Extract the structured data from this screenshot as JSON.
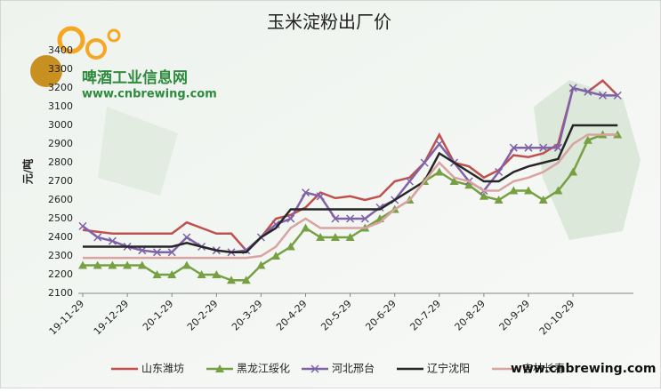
{
  "chart_data": {
    "type": "line",
    "title": "玉米淀粉出厂价",
    "y_label": "元/吨",
    "annotations": [
      "啤酒工业信息网",
      "www.cnbrewing.com",
      "www.cnbrewing.com"
    ],
    "categories": [
      "19-11-29",
      null,
      null,
      "19-12-29",
      null,
      null,
      "20-1-29",
      null,
      null,
      "20-2-29",
      null,
      null,
      "20-3-29",
      null,
      null,
      "20-4-29",
      null,
      null,
      "20-5-29",
      null,
      null,
      "20-6-29",
      null,
      null,
      "20-7-29",
      null,
      null,
      "20-8-29",
      null,
      null,
      "20-9-29",
      null,
      null,
      "20-10-29",
      null,
      null,
      null
    ],
    "series": [
      {
        "name": "山东潍坊",
        "color": "#c0504d",
        "marker": "none",
        "values": [
          2440,
          2430,
          2420,
          2420,
          2420,
          2420,
          2420,
          2480,
          2450,
          2420,
          2420,
          2330,
          2400,
          2500,
          2520,
          2560,
          2640,
          2610,
          2620,
          2600,
          2620,
          2700,
          2720,
          2800,
          2950,
          2800,
          2780,
          2720,
          2760,
          2840,
          2830,
          2850,
          2900,
          3200,
          3180,
          3240,
          3160
        ]
      },
      {
        "name": "黑龙江绥化",
        "color": "#77a043",
        "marker": "triangle",
        "values": [
          2250,
          2250,
          2250,
          2250,
          2250,
          2200,
          2200,
          2250,
          2200,
          2200,
          2170,
          2170,
          2250,
          2300,
          2350,
          2450,
          2400,
          2400,
          2400,
          2450,
          2500,
          2550,
          2600,
          2700,
          2750,
          2700,
          2680,
          2620,
          2600,
          2650,
          2650,
          2600,
          2650,
          2750,
          2920,
          2950,
          2950
        ]
      },
      {
        "name": "河北邢台",
        "color": "#7f62a8",
        "marker": "x",
        "values": [
          2460,
          2400,
          2380,
          2350,
          2330,
          2320,
          2320,
          2400,
          2350,
          2330,
          2320,
          2330,
          2400,
          2470,
          2500,
          2640,
          2620,
          2500,
          2500,
          2500,
          2560,
          2600,
          2700,
          2800,
          2900,
          2800,
          2700,
          2650,
          2750,
          2880,
          2880,
          2880,
          2880,
          3200,
          3180,
          3160,
          3160
        ]
      },
      {
        "name": "辽宁沈阳",
        "color": "#262626",
        "marker": "none",
        "values": [
          2350,
          2350,
          2350,
          2350,
          2350,
          2350,
          2350,
          2370,
          2350,
          2330,
          2320,
          2320,
          2400,
          2450,
          2550,
          2550,
          2550,
          2550,
          2550,
          2550,
          2550,
          2600,
          2650,
          2700,
          2850,
          2800,
          2750,
          2700,
          2700,
          2750,
          2780,
          2800,
          2820,
          3000,
          3000,
          3000,
          3000
        ]
      },
      {
        "name": "吉林长春",
        "color": "#d9a3a1",
        "marker": "none",
        "values": [
          2290,
          2290,
          2290,
          2290,
          2290,
          2290,
          2290,
          2290,
          2290,
          2290,
          2290,
          2290,
          2300,
          2350,
          2450,
          2500,
          2450,
          2450,
          2450,
          2450,
          2480,
          2550,
          2600,
          2700,
          2800,
          2720,
          2700,
          2650,
          2650,
          2700,
          2720,
          2750,
          2800,
          2900,
          2950,
          2950,
          2950
        ]
      }
    ],
    "ylim": [
      2100,
      3400
    ],
    "yticks": [
      2100,
      2200,
      2300,
      2400,
      2500,
      2600,
      2700,
      2800,
      2900,
      3000,
      3100,
      3200,
      3300,
      3400
    ],
    "grid": false
  }
}
